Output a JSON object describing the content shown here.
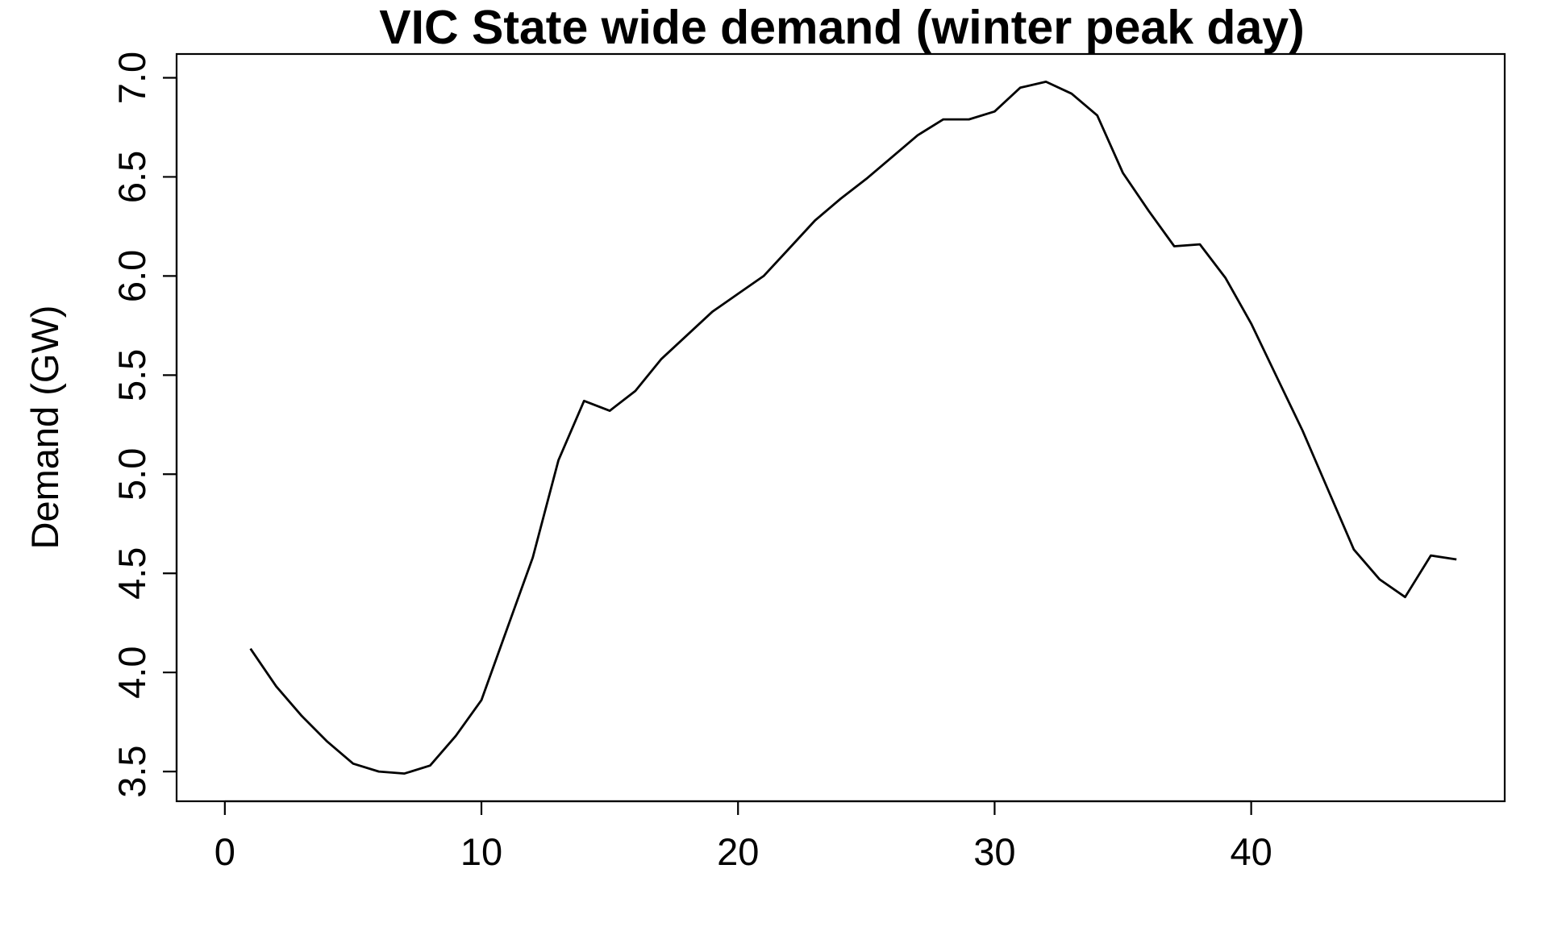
{
  "chart_data": {
    "type": "line",
    "title": "VIC State wide demand (winter peak day)",
    "xlabel": "",
    "ylabel": "Demand (GW)",
    "xlim": [
      -1.88,
      49.88
    ],
    "ylim": [
      3.35,
      7.12
    ],
    "x_ticks": [
      0,
      10,
      20,
      30,
      40
    ],
    "y_ticks": [
      3.5,
      4.0,
      4.5,
      5.0,
      5.5,
      6.0,
      6.5,
      7.0
    ],
    "x_tick_labels": [
      "0",
      "10",
      "20",
      "30",
      "40"
    ],
    "y_tick_labels": [
      "3.5",
      "4.0",
      "4.5",
      "5.0",
      "5.5",
      "6.0",
      "6.5",
      "7.0"
    ],
    "grid": false,
    "line_color": "#000000",
    "series": [
      {
        "x": [
          1,
          2,
          3,
          4,
          5,
          6,
          7,
          8,
          9,
          10,
          11,
          12,
          13,
          14,
          15,
          16,
          17,
          18,
          19,
          20,
          21,
          22,
          23,
          24,
          25,
          26,
          27,
          28,
          29,
          30,
          31,
          32,
          33,
          34,
          35,
          36,
          37,
          38,
          39,
          40,
          41,
          42,
          43,
          44,
          45,
          46,
          47,
          48
        ],
        "values": [
          4.12,
          3.93,
          3.78,
          3.65,
          3.54,
          3.5,
          3.49,
          3.53,
          3.68,
          3.86,
          4.22,
          4.58,
          5.07,
          5.37,
          5.32,
          5.42,
          5.58,
          5.7,
          5.82,
          5.91,
          6.0,
          6.14,
          6.28,
          6.39,
          6.49,
          6.6,
          6.71,
          6.79,
          6.79,
          6.83,
          6.95,
          6.98,
          6.92,
          6.81,
          6.52,
          6.33,
          6.15,
          6.16,
          5.99,
          5.76,
          5.49,
          5.22,
          4.92,
          4.62,
          4.47,
          4.38,
          4.59,
          4.57
        ]
      }
    ]
  }
}
